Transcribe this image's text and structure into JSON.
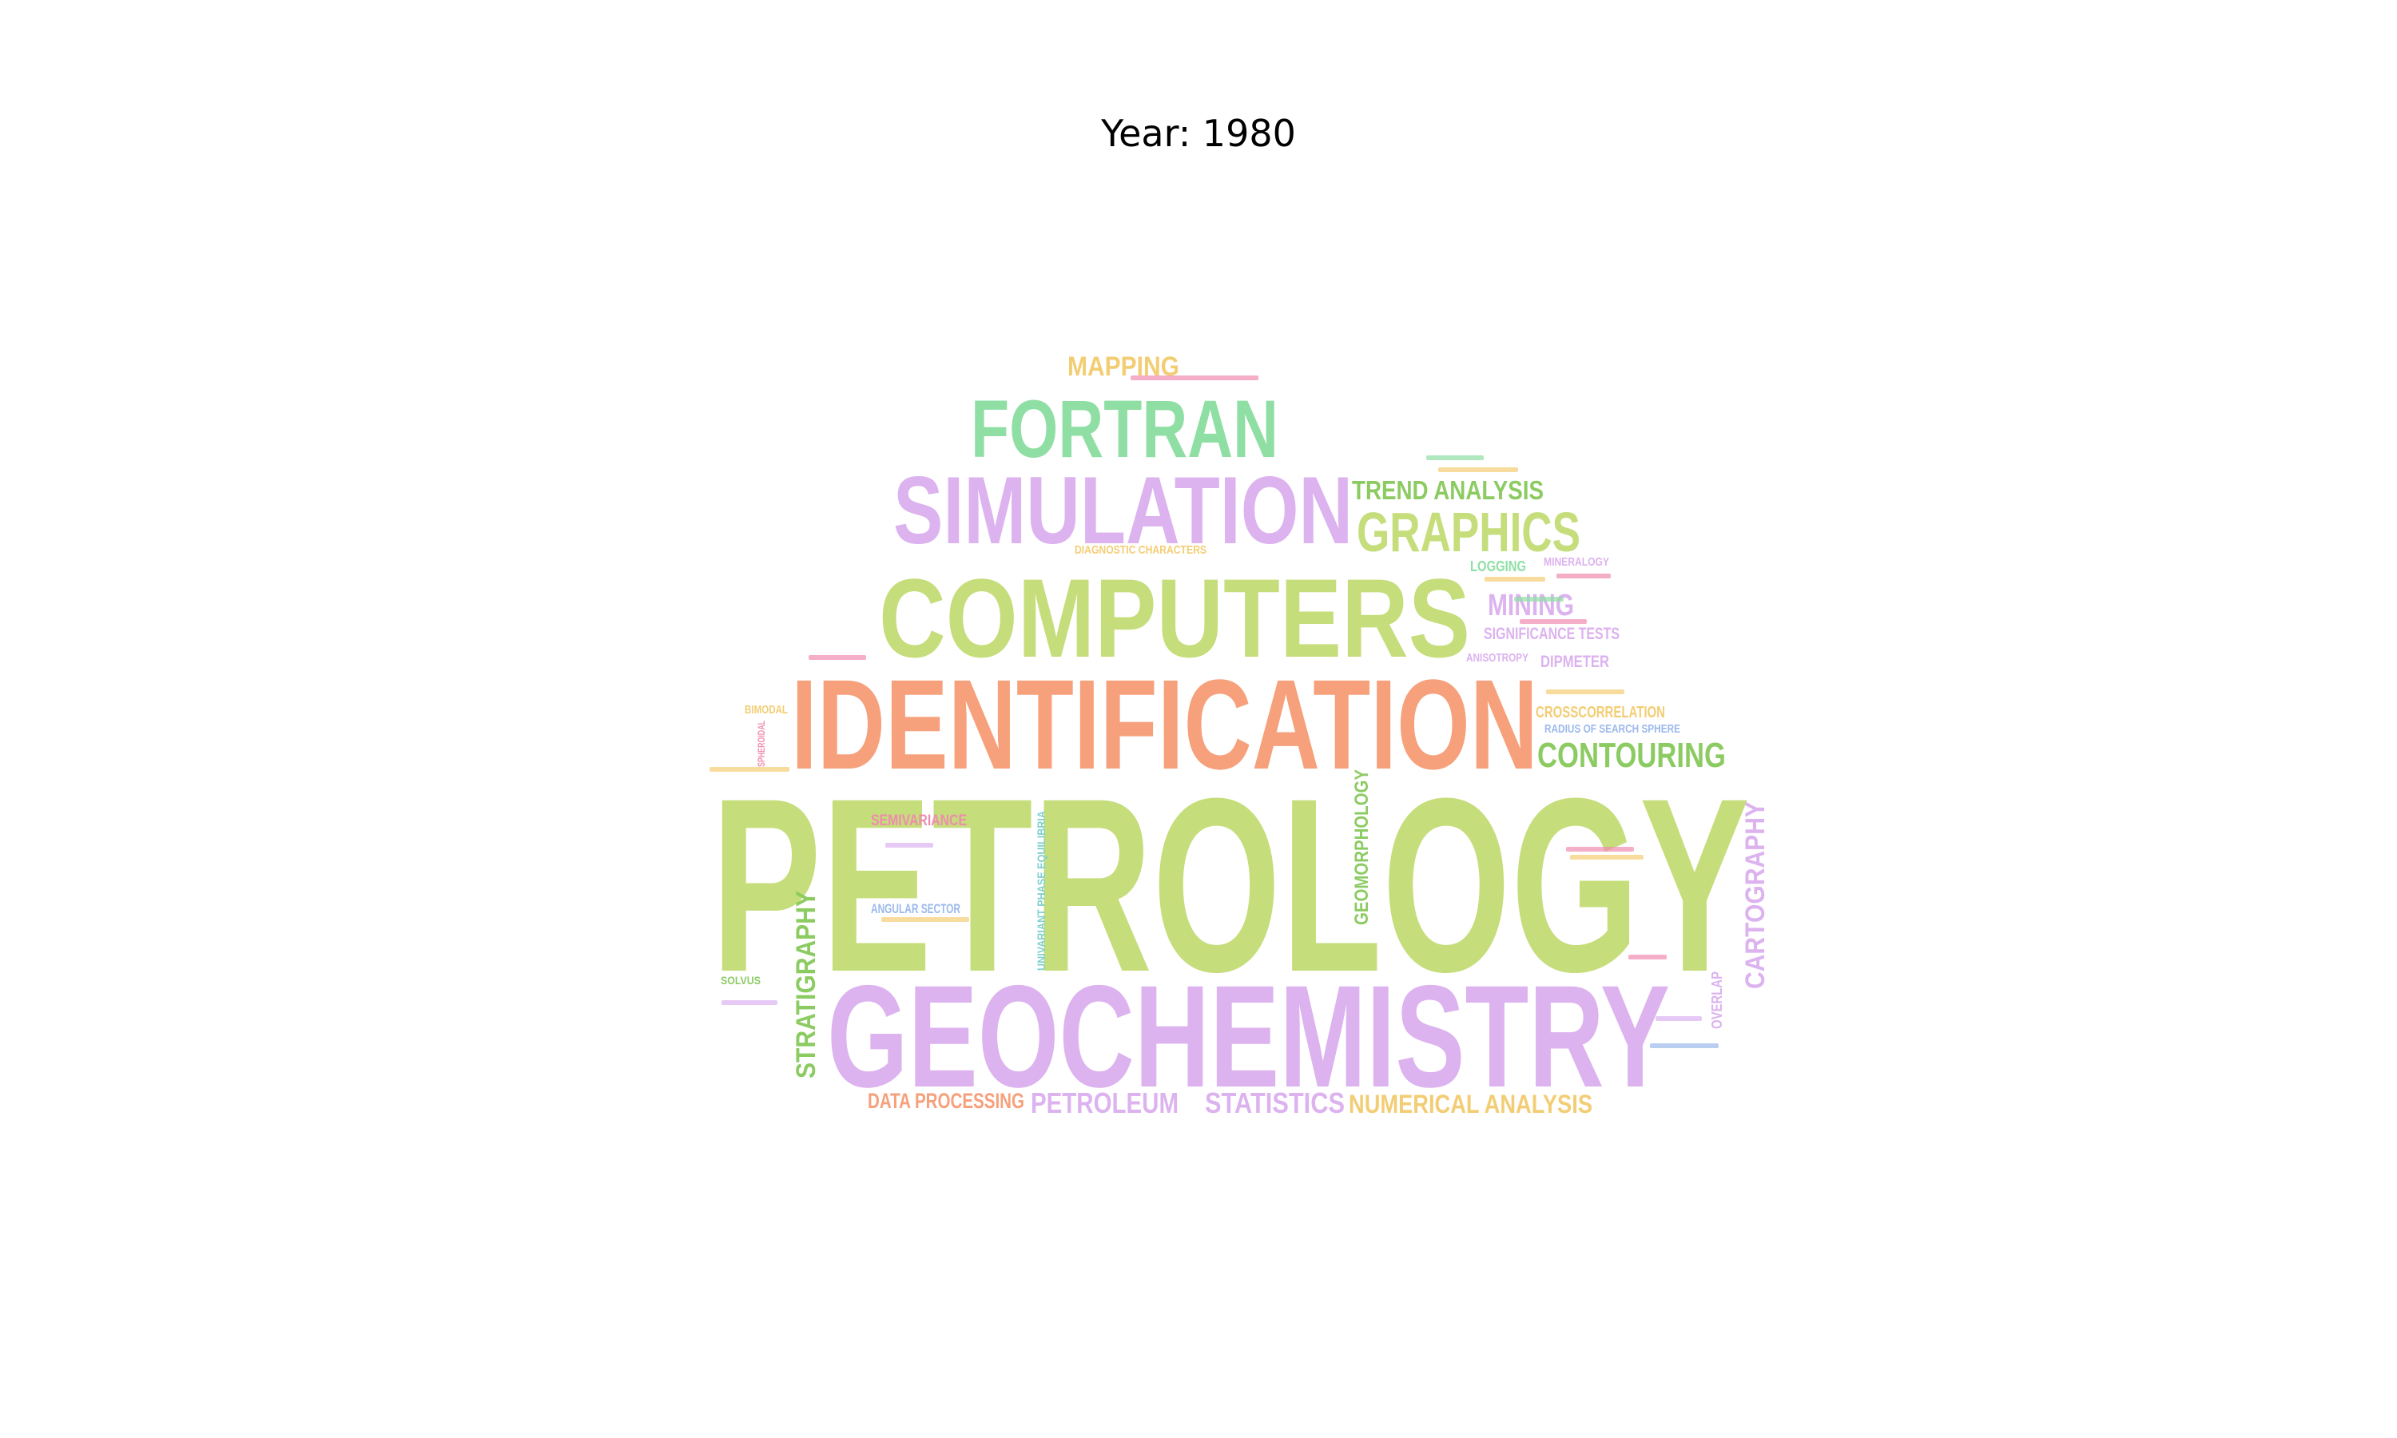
{
  "title": "Year: 1980",
  "colors": {
    "lime": "#c5dd7a",
    "lavender": "#dcb2ef",
    "salmon": "#f6a07c",
    "mint": "#8fdfa4",
    "green": "#8ccb62",
    "gold": "#f3cd74",
    "pink": "#f08cb0",
    "blue": "#9cb9ec",
    "teal": "#7fcfcf"
  },
  "words": [
    {
      "text": "PETROLOGY",
      "color": "lime"
    },
    {
      "text": "GEOCHEMISTRY",
      "color": "lavender"
    },
    {
      "text": "IDENTIFICATION",
      "color": "salmon"
    },
    {
      "text": "COMPUTERS",
      "color": "lime"
    },
    {
      "text": "SIMULATION",
      "color": "lavender"
    },
    {
      "text": "FORTRAN",
      "color": "mint"
    },
    {
      "text": "GRAPHICS",
      "color": "lime"
    },
    {
      "text": "TREND ANALYSIS",
      "color": "green"
    },
    {
      "text": "MAPPING",
      "color": "gold"
    },
    {
      "text": "CONTOURING",
      "color": "green"
    },
    {
      "text": "MINING",
      "color": "lavender"
    },
    {
      "text": "CARTOGRAPHY",
      "color": "lavender"
    },
    {
      "text": "STRATIGRAPHY",
      "color": "green"
    },
    {
      "text": "GEOMORPHOLOGY",
      "color": "green"
    },
    {
      "text": "DATA PROCESSING",
      "color": "salmon"
    },
    {
      "text": "PETROLEUM",
      "color": "lavender"
    },
    {
      "text": "STATISTICS",
      "color": "lavender"
    },
    {
      "text": "NUMERICAL ANALYSIS",
      "color": "gold"
    },
    {
      "text": "SIGNIFICANCE TESTS",
      "color": "lavender"
    },
    {
      "text": "SEMIVARIANCE",
      "color": "pink"
    },
    {
      "text": "ANGULAR SECTOR",
      "color": "blue"
    },
    {
      "text": "UNIVARIANT PHASE EQUILIBRIA",
      "color": "teal"
    },
    {
      "text": "CROSSCORRELATION",
      "color": "gold"
    },
    {
      "text": "RADIUS OF SEARCH SPHERE",
      "color": "blue"
    },
    {
      "text": "DIPMETER",
      "color": "lavender"
    },
    {
      "text": "ANISOTROPY",
      "color": "lavender"
    },
    {
      "text": "LOGGING",
      "color": "mint"
    },
    {
      "text": "MINERALOGY",
      "color": "lavender"
    },
    {
      "text": "OVERLAP",
      "color": "lavender"
    },
    {
      "text": "DIAGNOSTIC CHARACTERS",
      "color": "gold"
    },
    {
      "text": "SOLVUS",
      "color": "green"
    },
    {
      "text": "BIMODAL",
      "color": "gold"
    },
    {
      "text": "SPHEROIDAL",
      "color": "pink"
    }
  ]
}
